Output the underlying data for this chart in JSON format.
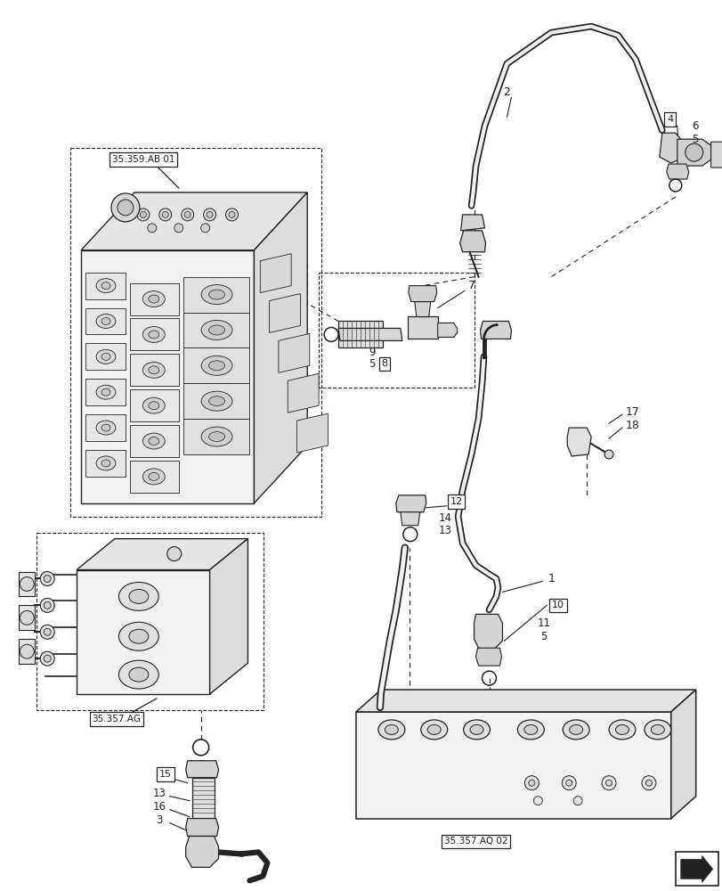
{
  "bg_color": "#ffffff",
  "line_color": "#222222",
  "labels": {
    "ref1": "35.359.AB 01",
    "ref2": "35.357.AG",
    "ref3": "35.357.AQ 02",
    "p1": "1",
    "p2": "2",
    "p3": "3",
    "p4": "4",
    "p5a": "5",
    "p5b": "5",
    "p5c": "5",
    "p6": "6",
    "p7": "7",
    "p8": "8",
    "p9": "9",
    "p10": "10",
    "p11": "11",
    "p12": "12",
    "p13a": "13",
    "p13b": "13",
    "p14": "14",
    "p15": "15",
    "p16": "16",
    "p17": "17",
    "p18": "18"
  },
  "figsize": [
    8.12,
    10.0
  ],
  "dpi": 100
}
